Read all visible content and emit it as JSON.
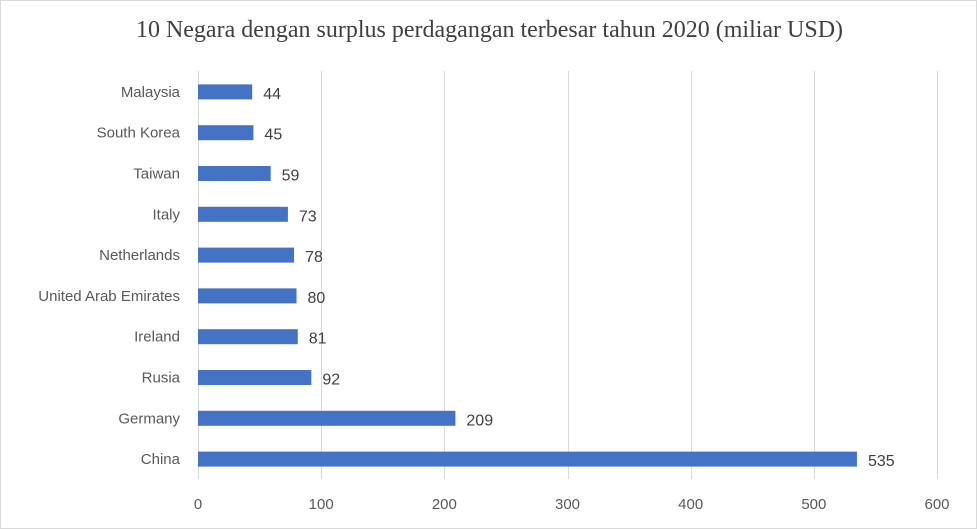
{
  "chart_data": {
    "type": "bar",
    "orientation": "horizontal",
    "title": "10 Negara dengan surplus perdagangan terbesar tahun 2020 (miliar USD)",
    "categories": [
      "Malaysia",
      "South Korea",
      "Taiwan",
      "Italy",
      "Netherlands",
      "United Arab Emirates",
      "Ireland",
      "Rusia",
      "Germany",
      "China"
    ],
    "values": [
      44,
      45,
      59,
      73,
      78,
      80,
      81,
      92,
      209,
      535
    ],
    "xlim": [
      0,
      600
    ],
    "x_ticks": [
      0,
      100,
      200,
      300,
      400,
      500,
      600
    ],
    "grid": "vertical",
    "legend": "none",
    "bar_color": "#4472c4"
  }
}
